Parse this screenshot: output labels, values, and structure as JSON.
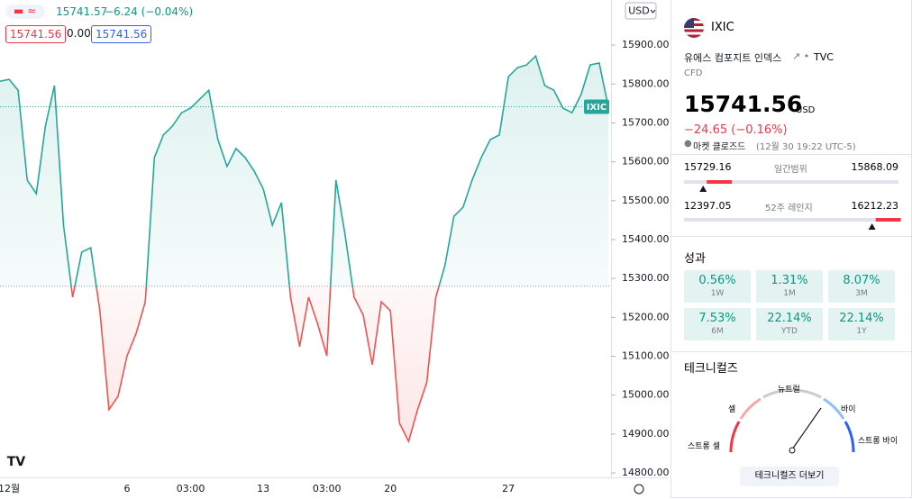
{
  "legend": {
    "price": "15741.57",
    "change": "−6.24 (−0.04%)",
    "open": "15741.56",
    "mid": "0.00",
    "close": "15741.56"
  },
  "chart_data": {
    "type": "line",
    "baseline": 15280,
    "last_label": "IXIC",
    "currency": "USD",
    "color_up": "#26a69a",
    "color_down": "#ef5350",
    "categories": [
      null,
      "12월",
      null,
      null,
      null,
      null,
      null,
      null,
      null,
      null,
      null,
      null,
      null,
      null,
      "6",
      null,
      null,
      null,
      null,
      null,
      null,
      "03:00",
      null,
      null,
      null,
      null,
      null,
      null,
      null,
      "13",
      null,
      null,
      null,
      null,
      null,
      null,
      "03:00",
      null,
      null,
      null,
      null,
      null,
      null,
      "20",
      null,
      null,
      null,
      null,
      null,
      null,
      null,
      null,
      null,
      null,
      null,
      null,
      "27",
      null,
      null,
      null,
      null,
      null,
      null,
      null,
      null,
      null,
      null,
      null
    ],
    "values": [
      15807,
      15812,
      15784,
      15553,
      15518,
      15692,
      15796,
      15437,
      15252,
      15368,
      15379,
      15217,
      14963,
      14997,
      15101,
      15159,
      15240,
      15611,
      15669,
      15692,
      15726,
      15738,
      15761,
      15784,
      15657,
      15588,
      15634,
      15611,
      15576,
      15530,
      15437,
      15495,
      15252,
      15125,
      15252,
      15182,
      15101,
      15553,
      15414,
      15252,
      15206,
      15078,
      15240,
      15217,
      14928,
      14881,
      14963,
      15032,
      15252,
      15333,
      15460,
      15483,
      15553,
      15611,
      15657,
      15669,
      15819,
      15842,
      15849,
      15872,
      15796,
      15784,
      15738,
      15726,
      15773,
      15849,
      15854,
      15741.56
    ],
    "ylim": [
      14777,
      16016
    ],
    "yticks": [
      {
        "value": 14800,
        "label": "14800.00"
      },
      {
        "value": 14900,
        "label": "14900.00"
      },
      {
        "value": 15000,
        "label": "15000.00"
      },
      {
        "value": 15100,
        "label": "15100.00"
      },
      {
        "value": 15200,
        "label": "15200.00"
      },
      {
        "value": 15300,
        "label": "15300.00"
      },
      {
        "value": 15400,
        "label": "15400.00"
      },
      {
        "value": 15500,
        "label": "15500.00"
      },
      {
        "value": 15600,
        "label": "15600.00"
      },
      {
        "value": 15700,
        "label": "15700.00"
      },
      {
        "value": 15800,
        "label": "15800.00"
      },
      {
        "value": 15900,
        "label": "15900.00"
      }
    ]
  },
  "panel": {
    "symbol": "IXIC",
    "name": "유에스 컴포지트 인덱스",
    "source": "TVC",
    "kind": "CFD",
    "price": 15741.56,
    "currency": "USD",
    "change": "−24.65 (−0.16%)",
    "status": "마켓 클로즈드",
    "time": "(12월 30 19:22 UTC-5)",
    "day_range": {
      "label": "일간범위",
      "low": 15729.16,
      "high": 15868.09
    },
    "year_range": {
      "label": "52주 레인지",
      "low": 12397.05,
      "high": 16212.23
    },
    "performance_title": "성과",
    "performance": [
      {
        "value": "0.56%",
        "period": "1W"
      },
      {
        "value": "1.31%",
        "period": "1M"
      },
      {
        "value": "8.07%",
        "period": "3M"
      },
      {
        "value": "7.53%",
        "period": "6M"
      },
      {
        "value": "22.14%",
        "period": "YTD"
      },
      {
        "value": "22.14%",
        "period": "1Y"
      }
    ],
    "technicals_title": "테크니컬즈",
    "gauge": {
      "strong_sell": "스트롱 셀",
      "sell": "셀",
      "neutral": "뉴트럴",
      "buy": "바이",
      "strong_buy": "스트롱 바이"
    },
    "button": "테크니컬즈 더보기"
  }
}
